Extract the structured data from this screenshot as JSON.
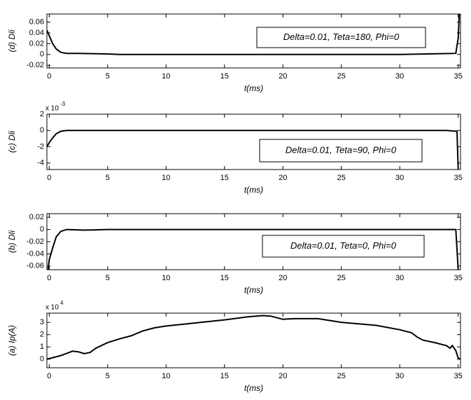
{
  "chart_data": [
    {
      "type": "line",
      "ylabel": "(d) Dli",
      "xlabel": "t(ms)",
      "annotation": "Delta=0.01, Teta=180, Phi=0",
      "color": "#000000",
      "xlim": [
        -0.2,
        35.2
      ],
      "xticks": [
        0,
        5,
        10,
        15,
        20,
        25,
        30,
        35
      ],
      "ylim": [
        -0.025,
        0.075
      ],
      "yticks": [
        -0.02,
        0,
        0.02,
        0.04,
        0.06
      ],
      "x": [
        -0.2,
        0,
        0.3,
        0.6,
        1,
        1.5,
        2.5,
        5,
        6,
        10,
        20,
        30,
        34.8,
        35,
        35.1
      ],
      "values": [
        0.045,
        0.035,
        0.02,
        0.01,
        0.004,
        0.002,
        0.002,
        0.001,
        0,
        0,
        0,
        0,
        0.002,
        0.03,
        0.075
      ]
    },
    {
      "type": "line",
      "ylabel": "(c) Dli",
      "xlabel": "t(ms)",
      "annotation": "Delta=0.01, Teta=90, Phi=0",
      "color": "#000000",
      "multiplier": {
        "base": "x 10",
        "exponent": "-3"
      },
      "xlim": [
        -0.2,
        35.2
      ],
      "xticks": [
        0,
        5,
        10,
        15,
        20,
        25,
        30,
        35
      ],
      "ylim": [
        -4.8,
        2
      ],
      "yticks": [
        -4,
        -2,
        0,
        2
      ],
      "x": [
        -0.2,
        0,
        0.3,
        0.6,
        1,
        1.5,
        8,
        20,
        30,
        34,
        34.9,
        35
      ],
      "values": [
        -2,
        -1.5,
        -0.9,
        -0.4,
        -0.1,
        0,
        0,
        0,
        0,
        0,
        -0.1,
        -4.8
      ]
    },
    {
      "type": "line",
      "ylabel": "(b) Dli",
      "xlabel": "t(ms)",
      "annotation": "Delta=0.01, Teta=0, Phi=0",
      "color": "#000000",
      "xlim": [
        -0.2,
        35.2
      ],
      "xticks": [
        0,
        5,
        10,
        15,
        20,
        25,
        30,
        35
      ],
      "ylim": [
        -0.066,
        0.026
      ],
      "yticks": [
        -0.06,
        -0.04,
        -0.02,
        0,
        0.02
      ],
      "x": [
        -0.1,
        0,
        0.3,
        0.6,
        1,
        1.5,
        3,
        5,
        20,
        34.8,
        35
      ],
      "values": [
        -0.066,
        -0.05,
        -0.03,
        -0.012,
        -0.003,
        0,
        -0.001,
        0,
        0,
        0,
        -0.066
      ]
    },
    {
      "type": "line",
      "ylabel": "(a) Ip(A)",
      "xlabel": "t(ms)",
      "color": "#000000",
      "multiplier": {
        "base": "x 10",
        "exponent": "4"
      },
      "xlim": [
        -0.2,
        35.2
      ],
      "xticks": [
        0,
        5,
        10,
        15,
        20,
        25,
        30,
        35
      ],
      "ylim": [
        -0.7,
        3.75
      ],
      "yticks": [
        0,
        1,
        2,
        3
      ],
      "x": [
        -0.2,
        0,
        1,
        2,
        2.5,
        3,
        3.5,
        4,
        5,
        6,
        7,
        8,
        9,
        10,
        12,
        15,
        17,
        18.3,
        19,
        20,
        21,
        23,
        25,
        28,
        30,
        31,
        31.5,
        32,
        33,
        34,
        34.3,
        34.5,
        34.8,
        35,
        35.2
      ],
      "values": [
        0,
        0.05,
        0.3,
        0.65,
        0.6,
        0.45,
        0.55,
        0.9,
        1.35,
        1.65,
        1.9,
        2.3,
        2.55,
        2.7,
        2.9,
        3.2,
        3.45,
        3.55,
        3.5,
        3.25,
        3.3,
        3.3,
        3.0,
        2.75,
        2.4,
        2.15,
        1.8,
        1.55,
        1.35,
        1.1,
        0.9,
        1.1,
        0.7,
        0.1,
        0
      ]
    }
  ]
}
